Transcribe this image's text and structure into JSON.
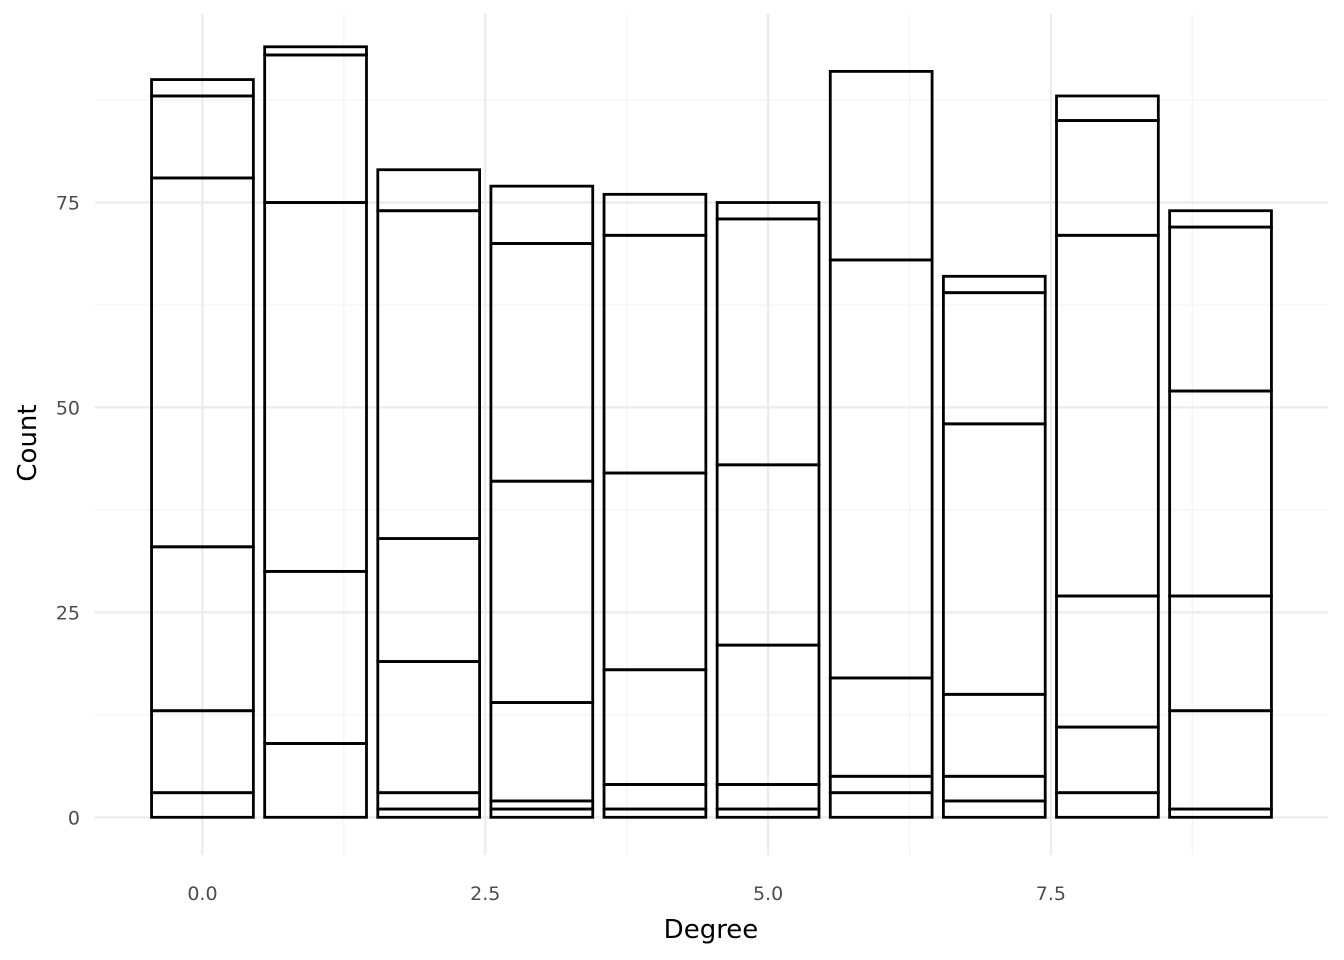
{
  "chart_data": {
    "type": "bar",
    "stacked": true,
    "fill": "none",
    "outline_color": "#000000",
    "grid": true,
    "xlabel": "Degree",
    "ylabel": "Count",
    "xlim": [
      -0.95,
      9.95
    ],
    "ylim": [
      -4.6,
      98
    ],
    "x_ticks": [
      {
        "value": 0.0,
        "label": "0.0"
      },
      {
        "value": 2.5,
        "label": "2.5"
      },
      {
        "value": 5.0,
        "label": "5.0"
      },
      {
        "value": 7.5,
        "label": "7.5"
      }
    ],
    "y_ticks": [
      {
        "value": 0,
        "label": "0"
      },
      {
        "value": 25,
        "label": "25"
      },
      {
        "value": 50,
        "label": "50"
      },
      {
        "value": 75,
        "label": "75"
      }
    ],
    "bar_width": 0.9,
    "bars": [
      {
        "x": 0,
        "boundaries": [
          3,
          13,
          33,
          78,
          88,
          90
        ]
      },
      {
        "x": 1,
        "boundaries": [
          9,
          30,
          75,
          93,
          94
        ]
      },
      {
        "x": 2,
        "boundaries": [
          1,
          3,
          19,
          34,
          74,
          79
        ]
      },
      {
        "x": 3,
        "boundaries": [
          1,
          2,
          14,
          41,
          70,
          77
        ]
      },
      {
        "x": 4,
        "boundaries": [
          1,
          4,
          18,
          42,
          71,
          76
        ]
      },
      {
        "x": 5,
        "boundaries": [
          1,
          4,
          21,
          43,
          73,
          75
        ]
      },
      {
        "x": 6,
        "boundaries": [
          3,
          5,
          17,
          68,
          91
        ]
      },
      {
        "x": 7,
        "boundaries": [
          2,
          5,
          15,
          48,
          64,
          66
        ]
      },
      {
        "x": 8,
        "boundaries": [
          3,
          11,
          27,
          71,
          85,
          88
        ]
      },
      {
        "x": 9,
        "boundaries": [
          1,
          13,
          27,
          52,
          72,
          74
        ]
      }
    ]
  }
}
